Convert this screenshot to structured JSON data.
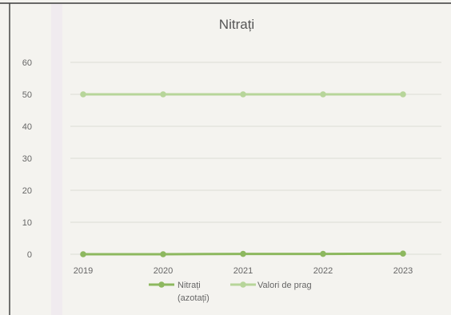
{
  "chart_data": {
    "type": "line",
    "title": "Nitrați",
    "xlabel": "",
    "ylabel": "",
    "categories": [
      "2019",
      "2020",
      "2021",
      "2022",
      "2023"
    ],
    "ylim": [
      0,
      60
    ],
    "yticks": [
      "0",
      "10",
      "20",
      "30",
      "40",
      "50",
      "60"
    ],
    "grid": true,
    "legend_position": "bottom",
    "series": [
      {
        "name": "Nitrați (azotați)",
        "name_lines": [
          "Nitrați",
          "(azotați)"
        ],
        "values": [
          0,
          0,
          0.1,
          0.1,
          0.2
        ],
        "color": "#8db85f"
      },
      {
        "name": "Valori de prag",
        "name_lines": [
          "Valori de prag"
        ],
        "values": [
          50,
          50,
          50,
          50,
          50
        ],
        "color": "#b7d59a"
      }
    ]
  }
}
